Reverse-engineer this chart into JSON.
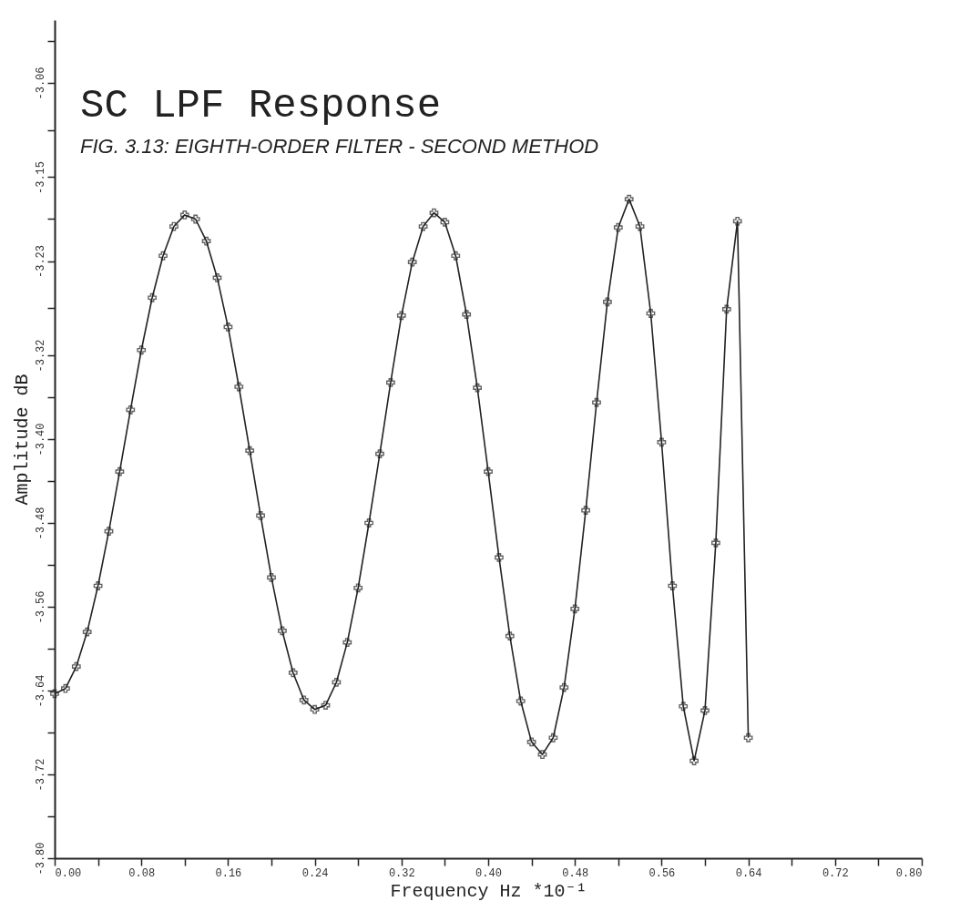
{
  "chart_data": {
    "type": "line",
    "title": "SC LPF Response",
    "subtitle": "FIG. 3.13: EIGHTH-ORDER FILTER - SECOND METHOD",
    "xlabel": "Frequency Hz  *10⁻¹",
    "ylabel": "Amplitude dB",
    "x": [
      0.0,
      0.01,
      0.02,
      0.03,
      0.04,
      0.05,
      0.06,
      0.07,
      0.08,
      0.09,
      0.1,
      0.11,
      0.12,
      0.13,
      0.14,
      0.15,
      0.16,
      0.17,
      0.18,
      0.19,
      0.2,
      0.21,
      0.22,
      0.23,
      0.24,
      0.25,
      0.26,
      0.27,
      0.28,
      0.29,
      0.3,
      0.31,
      0.32,
      0.33,
      0.34,
      0.35,
      0.36,
      0.37,
      0.38,
      0.39,
      0.4,
      0.41,
      0.42,
      0.43,
      0.44,
      0.45,
      0.46,
      0.47,
      0.48,
      0.49,
      0.5,
      0.51,
      0.52,
      0.53,
      0.54,
      0.55,
      0.56,
      0.57,
      0.58,
      0.59,
      0.6,
      0.61,
      0.62,
      0.63,
      0.64
    ],
    "series": [
      {
        "color": "#222222",
        "values": [
          -3.643,
          -3.638,
          -3.617,
          -3.584,
          -3.54,
          -3.488,
          -3.431,
          -3.372,
          -3.315,
          -3.265,
          -3.225,
          -3.197,
          -3.186,
          -3.19,
          -3.211,
          -3.246,
          -3.293,
          -3.35,
          -3.411,
          -3.473,
          -3.532,
          -3.583,
          -3.623,
          -3.649,
          -3.658,
          -3.654,
          -3.632,
          -3.594,
          -3.542,
          -3.48,
          -3.414,
          -3.346,
          -3.282,
          -3.231,
          -3.197,
          -3.184,
          -3.193,
          -3.225,
          -3.281,
          -3.351,
          -3.431,
          -3.513,
          -3.588,
          -3.65,
          -3.689,
          -3.701,
          -3.685,
          -3.637,
          -3.562,
          -3.468,
          -3.365,
          -3.269,
          -3.198,
          -3.171,
          -3.197,
          -3.28,
          -3.403,
          -3.54,
          -3.655,
          -3.707,
          -3.659,
          -3.499,
          -3.276,
          -3.192,
          -3.685
        ]
      }
    ],
    "xlim": [
      0,
      0.8
    ],
    "xticks": [
      {
        "value": 0,
        "label": "0.00"
      },
      {
        "value": 0.04,
        "label": null
      },
      0.08,
      {
        "value": 0.12,
        "label": null
      },
      0.16,
      {
        "value": 0.2,
        "label": null
      },
      0.24,
      {
        "value": 0.28,
        "label": null
      },
      0.32,
      {
        "value": 0.36,
        "label": null
      },
      {
        "value": 0.4,
        "label": "0.40"
      },
      {
        "value": 0.44,
        "label": null
      },
      0.48,
      {
        "value": 0.52,
        "label": null
      },
      0.56,
      {
        "value": 0.6,
        "label": null
      },
      0.64,
      {
        "value": 0.68,
        "label": null
      },
      0.72,
      {
        "value": 0.76,
        "label": null
      },
      {
        "value": 0.8,
        "label": "0.80"
      }
    ],
    "ylim": [
      -3.8,
      -3.0
    ],
    "yticks": [
      {
        "value": -3.8,
        "label": "-3.80"
      },
      {
        "value": -3.76,
        "label": null
      },
      -3.72,
      {
        "value": -3.68,
        "label": null
      },
      -3.64,
      {
        "value": -3.6,
        "label": null
      },
      -3.56,
      {
        "value": -3.52,
        "label": null
      },
      -3.48,
      {
        "value": -3.44,
        "label": null
      },
      {
        "value": -3.4,
        "label": "-3.40"
      },
      {
        "value": -3.36,
        "label": null
      },
      -3.32,
      {
        "value": -3.275,
        "label": null
      },
      -3.23,
      {
        "value": -3.19,
        "label": null
      },
      -3.15,
      {
        "value": -3.105,
        "label": null
      },
      -3.06,
      {
        "value": -3.02,
        "label": null
      }
    ],
    "marker": "cross",
    "line_style": "solid"
  }
}
